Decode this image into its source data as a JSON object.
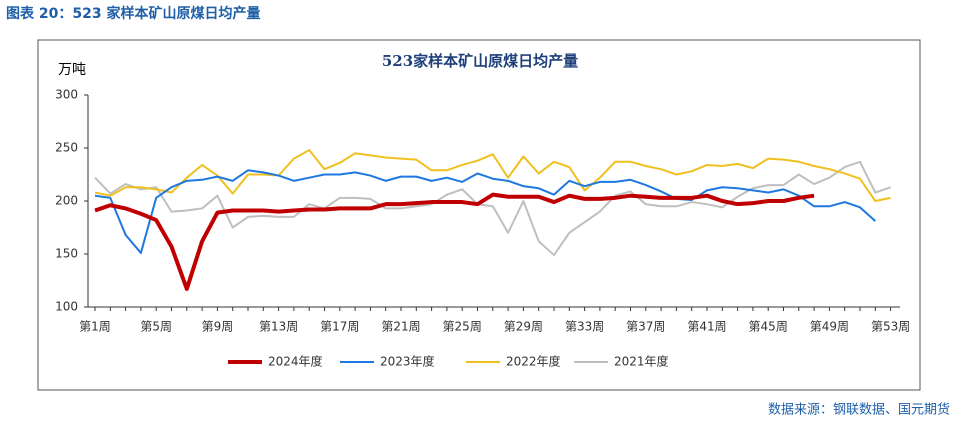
{
  "header": {
    "title": "图表 20：523 家样本矿山原煤日均产量"
  },
  "chart_data": {
    "type": "line",
    "title": "523家样本矿山原煤日均产量",
    "y_label": "万吨",
    "categories": [
      "第1周",
      null,
      null,
      null,
      "第5周",
      null,
      null,
      null,
      "第9周",
      null,
      null,
      null,
      "第13周",
      null,
      null,
      null,
      "第17周",
      null,
      null,
      null,
      "第21周",
      null,
      null,
      null,
      "第25周",
      null,
      null,
      null,
      "第29周",
      null,
      null,
      null,
      "第33周",
      null,
      null,
      null,
      "第37周",
      null,
      null,
      null,
      "第41周",
      null,
      null,
      null,
      "第45周",
      null,
      null,
      null,
      "第49周",
      null,
      null,
      null,
      "第53周"
    ],
    "ylim": [
      100,
      300
    ],
    "yticks": [
      100,
      150,
      200,
      250,
      300
    ],
    "series": [
      {
        "name": "2024年度",
        "color": "#c00000",
        "width": 4,
        "values": [
          191,
          196,
          193,
          188,
          182,
          157,
          117,
          162,
          189,
          191,
          191,
          191,
          190,
          191,
          192,
          192,
          193,
          193,
          193,
          197,
          197,
          198,
          199,
          199,
          199,
          197,
          206,
          204,
          204,
          204,
          199,
          205,
          202,
          202,
          203,
          205,
          204,
          203,
          203,
          203,
          205,
          200,
          197,
          198,
          200,
          200,
          203,
          205,
          null,
          null,
          null,
          null,
          null
        ]
      },
      {
        "name": "2023年度",
        "color": "#1f78e0",
        "width": 2,
        "values": [
          205,
          203,
          168,
          151,
          203,
          213,
          219,
          220,
          223,
          219,
          229,
          227,
          224,
          219,
          222,
          225,
          225,
          227,
          224,
          219,
          223,
          223,
          219,
          222,
          218,
          226,
          221,
          219,
          214,
          212,
          206,
          219,
          214,
          218,
          218,
          220,
          215,
          209,
          202,
          201,
          210,
          213,
          212,
          210,
          208,
          211,
          205,
          195,
          195,
          199,
          194,
          181,
          null
        ]
      },
      {
        "name": "2022年度",
        "color": "#f0c020",
        "width": 2,
        "values": [
          208,
          205,
          213,
          213,
          211,
          208,
          222,
          234,
          224,
          207,
          225,
          225,
          224,
          240,
          248,
          230,
          236,
          245,
          243,
          241,
          240,
          239,
          229,
          229,
          234,
          238,
          244,
          222,
          242,
          226,
          237,
          232,
          210,
          222,
          237,
          237,
          233,
          230,
          225,
          228,
          234,
          233,
          235,
          231,
          240,
          239,
          237,
          233,
          230,
          226,
          221,
          200,
          203
        ]
      },
      {
        "name": "2021年度",
        "color": "#bfbfbf",
        "width": 2,
        "values": [
          222,
          207,
          216,
          211,
          213,
          190,
          191,
          193,
          205,
          175,
          185,
          186,
          185,
          185,
          197,
          193,
          203,
          203,
          202,
          193,
          193,
          195,
          197,
          206,
          211,
          197,
          195,
          170,
          200,
          162,
          149,
          170,
          180,
          190,
          205,
          209,
          197,
          195,
          195,
          199,
          197,
          194,
          204,
          212,
          215,
          215,
          225,
          216,
          222,
          232,
          237,
          208,
          213
        ]
      }
    ]
  },
  "footer": {
    "source": "数据来源：钢联数据、国元期货"
  }
}
